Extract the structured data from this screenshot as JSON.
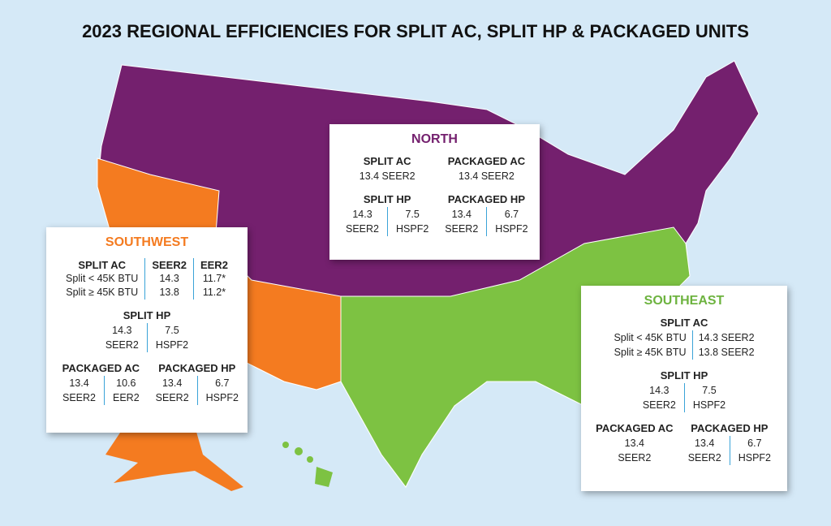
{
  "title": "2023 REGIONAL EFFICIENCIES FOR SPLIT AC, SPLIT HP & PACKAGED UNITS",
  "north": {
    "title": "NORTH",
    "split_ac": {
      "label": "SPLIT AC",
      "value": "13.4 SEER2"
    },
    "packaged_ac": {
      "label": "PACKAGED AC",
      "value": "13.4 SEER2"
    },
    "split_hp": {
      "label": "SPLIT HP",
      "cells": [
        [
          "14.3",
          "SEER2"
        ],
        [
          "7.5",
          "HSPF2"
        ]
      ]
    },
    "packaged_hp": {
      "label": "PACKAGED HP",
      "cells": [
        [
          "13.4",
          "SEER2"
        ],
        [
          "6.7",
          "HSPF2"
        ]
      ]
    }
  },
  "southwest": {
    "title": "SOUTHWEST",
    "split_ac": {
      "label": "SPLIT AC",
      "headers": [
        "SEER2",
        "EER2"
      ],
      "rows": [
        {
          "label": "Split < 45K BTU",
          "values": [
            "14.3",
            "11.7*"
          ]
        },
        {
          "label": "Split ≥ 45K BTU",
          "values": [
            "13.8",
            "11.2*"
          ]
        }
      ]
    },
    "split_hp": {
      "label": "SPLIT HP",
      "cells": [
        [
          "14.3",
          "SEER2"
        ],
        [
          "7.5",
          "HSPF2"
        ]
      ]
    },
    "packaged_ac": {
      "label": "PACKAGED AC",
      "cells": [
        [
          "13.4",
          "SEER2"
        ],
        [
          "10.6",
          "EER2"
        ]
      ]
    },
    "packaged_hp": {
      "label": "PACKAGED HP",
      "cells": [
        [
          "13.4",
          "SEER2"
        ],
        [
          "6.7",
          "HSPF2"
        ]
      ]
    }
  },
  "southeast": {
    "title": "SOUTHEAST",
    "split_ac": {
      "label": "SPLIT AC",
      "rows": [
        {
          "label": "Split < 45K BTU",
          "value": "14.3 SEER2"
        },
        {
          "label": "Split ≥ 45K BTU",
          "value": "13.8 SEER2"
        }
      ]
    },
    "split_hp": {
      "label": "SPLIT HP",
      "cells": [
        [
          "14.3",
          "SEER2"
        ],
        [
          "7.5",
          "HSPF2"
        ]
      ]
    },
    "packaged_ac": {
      "label": "PACKAGED AC",
      "cells": [
        [
          "13.4",
          "SEER2"
        ]
      ]
    },
    "packaged_hp": {
      "label": "PACKAGED HP",
      "cells": [
        [
          "13.4",
          "SEER2"
        ],
        [
          "6.7",
          "HSPF2"
        ]
      ]
    }
  }
}
